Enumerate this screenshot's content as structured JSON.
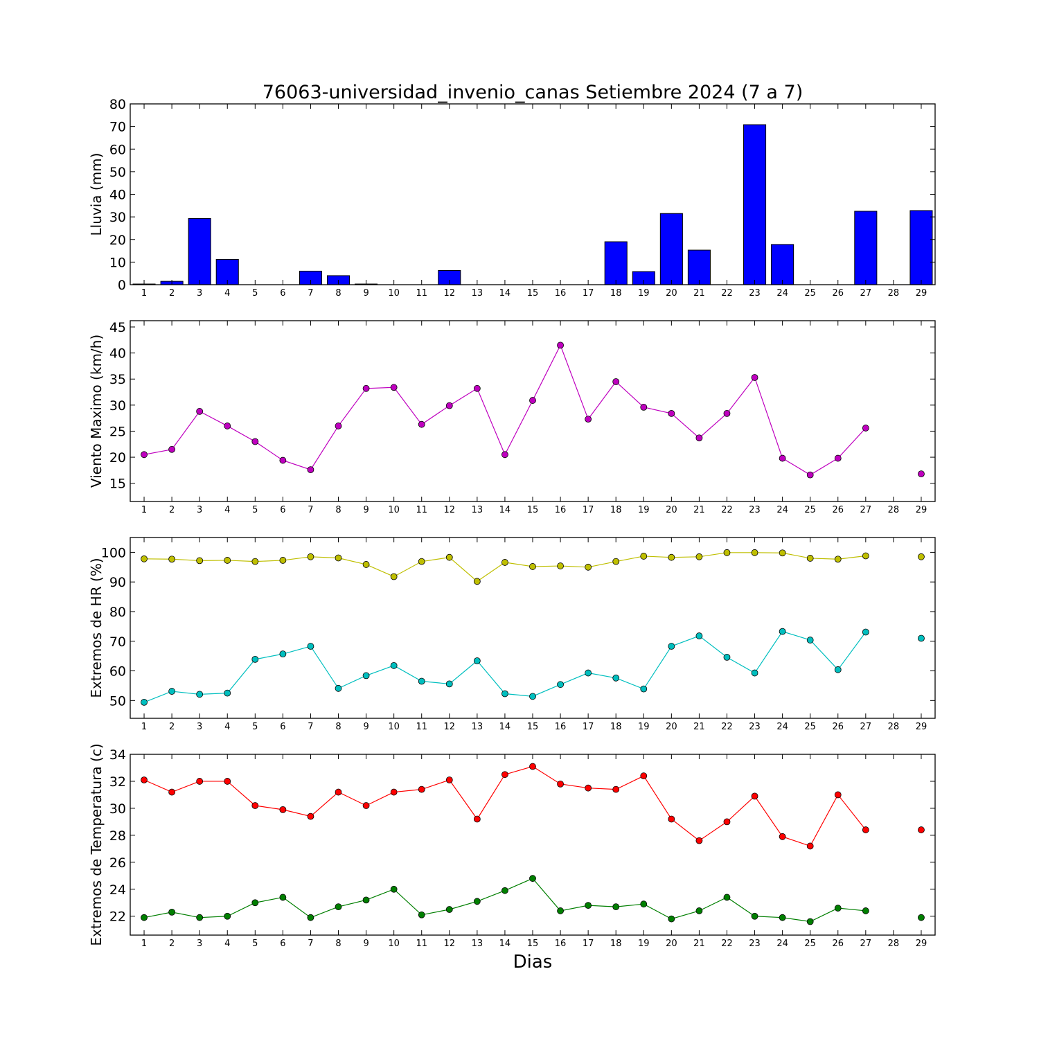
{
  "chart_data": {
    "title": "76063-universidad_invenio_canas Setiembre 2024  (7 a 7)",
    "xlabel": "Dias",
    "days": [
      1,
      2,
      3,
      4,
      5,
      6,
      7,
      8,
      9,
      10,
      11,
      12,
      13,
      14,
      15,
      16,
      17,
      18,
      19,
      20,
      21,
      22,
      23,
      24,
      25,
      26,
      27,
      28,
      29
    ],
    "panels": [
      {
        "type": "bar",
        "ylabel": "Lluvia (mm)",
        "ylim": [
          0,
          80
        ],
        "yticks": [
          0,
          10,
          20,
          30,
          40,
          50,
          60,
          70,
          80
        ],
        "series": [
          {
            "color": "#0000ff",
            "values": [
              0.3,
              1.5,
              29.3,
              11.2,
              0,
              0,
              6,
              4,
              0.3,
              0,
              0,
              6.3,
              0,
              0,
              0,
              0,
              0,
              19,
              5.8,
              31.5,
              15.3,
              0,
              70.8,
              17.8,
              0,
              0,
              32.5,
              0,
              32.8
            ]
          }
        ]
      },
      {
        "type": "line",
        "ylabel": "Viento Maximo (km/h)",
        "ylim": [
          11.5,
          46.2
        ],
        "yticks": [
          15,
          20,
          25,
          30,
          35,
          40,
          45
        ],
        "series": [
          {
            "color": "#bf00bf",
            "values": [
              20.5,
              21.5,
              28.8,
              26,
              23,
              19.4,
              17.6,
              26,
              33.2,
              33.4,
              26.3,
              29.9,
              33.2,
              20.5,
              30.9,
              41.5,
              27.3,
              34.5,
              29.6,
              28.4,
              23.7,
              28.4,
              35.3,
              19.8,
              16.6,
              19.8,
              25.6,
              null,
              16.8
            ]
          }
        ]
      },
      {
        "type": "line",
        "ylabel": "Extremos de HR (%)",
        "ylim": [
          44,
          105
        ],
        "yticks": [
          50,
          60,
          70,
          80,
          90,
          100
        ],
        "series": [
          {
            "color": "#bfbf00",
            "values": [
              97.8,
              97.7,
              97.2,
              97.3,
              96.9,
              97.3,
              98.5,
              98.1,
              95.9,
              91.8,
              96.9,
              98.3,
              90.2,
              96.6,
              95.2,
              95.4,
              95,
              96.9,
              98.7,
              98.3,
              98.5,
              99.9,
              99.9,
              99.8,
              98,
              97.7,
              98.8,
              null,
              98.5
            ]
          },
          {
            "color": "#00bfbf",
            "values": [
              49.4,
              53.1,
              52.1,
              52.5,
              63.9,
              65.7,
              68.3,
              54.1,
              58.4,
              61.8,
              56.5,
              55.6,
              63.4,
              52.3,
              51.4,
              55.4,
              59.3,
              57.6,
              53.9,
              68.3,
              71.8,
              64.6,
              59.3,
              73.3,
              70.4,
              60.4,
              73.1,
              null,
              71
            ]
          }
        ]
      },
      {
        "type": "line",
        "ylabel": "Extremos de Temperatura (c)",
        "ylim": [
          20.6,
          34
        ],
        "yticks": [
          22,
          24,
          26,
          28,
          30,
          32,
          34
        ],
        "series": [
          {
            "color": "#ff0000",
            "values": [
              32.1,
              31.2,
              32,
              32,
              30.2,
              29.9,
              29.4,
              31.2,
              30.2,
              31.2,
              31.4,
              32.1,
              29.2,
              32.5,
              33.1,
              31.8,
              31.5,
              31.4,
              32.4,
              29.2,
              27.6,
              29,
              30.9,
              27.9,
              27.2,
              31,
              28.4,
              null,
              28.4
            ]
          },
          {
            "color": "#007f00",
            "values": [
              21.9,
              22.3,
              21.9,
              22,
              23,
              23.4,
              21.9,
              22.7,
              23.2,
              24,
              22.1,
              22.5,
              23.1,
              23.9,
              24.8,
              22.4,
              22.8,
              22.7,
              22.9,
              21.8,
              22.4,
              23.4,
              22,
              21.9,
              21.6,
              22.6,
              22.4,
              null,
              21.9
            ]
          }
        ]
      }
    ]
  }
}
